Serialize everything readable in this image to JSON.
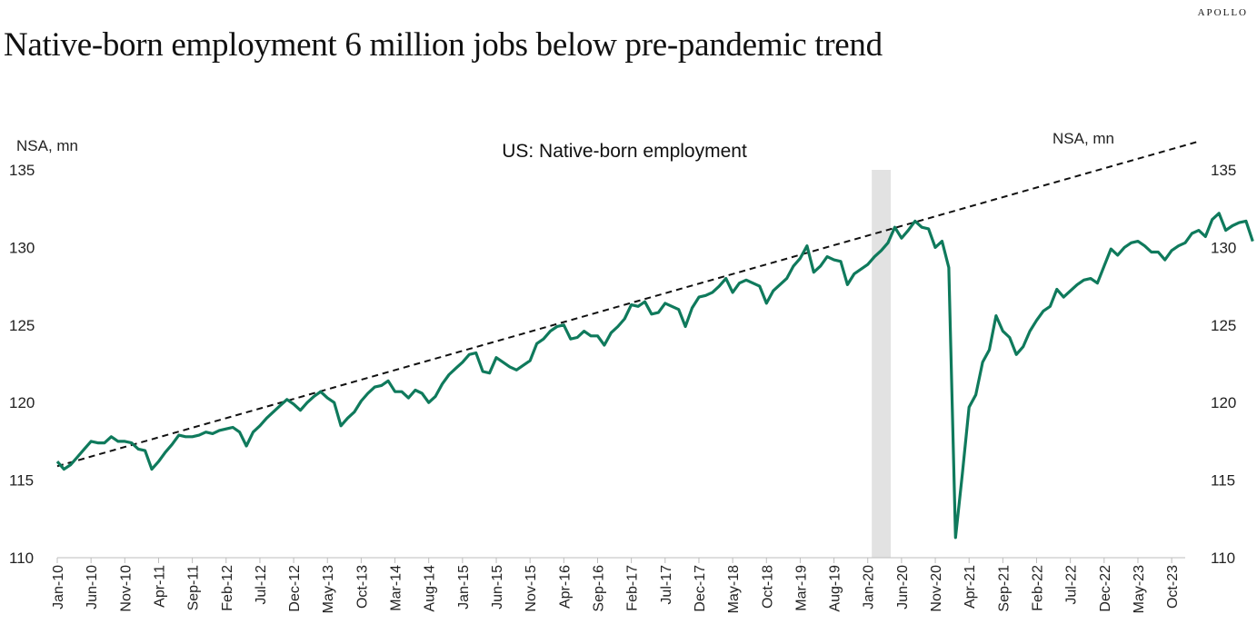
{
  "brand": "APOLLO",
  "title": "Native-born employment 6 million jobs below pre-pandemic trend",
  "chart_data": {
    "type": "line",
    "title": "US: Native-born employment",
    "ylabel_left": "NSA, mn",
    "ylabel_right": "NSA, mn",
    "ylim": [
      110,
      135
    ],
    "yticks": [
      110,
      115,
      120,
      125,
      130,
      135
    ],
    "x_tick_labels": [
      "Jan-10",
      "Jun-10",
      "Nov-10",
      "Apr-11",
      "Sep-11",
      "Feb-12",
      "Jul-12",
      "Dec-12",
      "May-13",
      "Oct-13",
      "Mar-14",
      "Aug-14",
      "Jan-15",
      "Jun-15",
      "Nov-15",
      "Apr-16",
      "Sep-16",
      "Feb-17",
      "Jul-17",
      "Dec-17",
      "May-18",
      "Oct-18",
      "Mar-19",
      "Aug-19",
      "Jan-20",
      "Jun-20",
      "Nov-20",
      "Apr-21",
      "Sep-21",
      "Feb-22",
      "Jul-22",
      "Dec-22",
      "May-23",
      "Oct-23"
    ],
    "x_start": "Jan-10",
    "x_end": "Dec-23",
    "recession_shading": {
      "start": "Feb-20",
      "end": "Apr-20",
      "color": "#e2e2e2"
    },
    "line_color": "#0f7a5c",
    "trend_color": "#111111",
    "grid": false,
    "series": [
      {
        "values": [
          116.2,
          115.7,
          116.0,
          116.5,
          117.0,
          117.5,
          117.4,
          117.4,
          117.8,
          117.5,
          117.5,
          117.4,
          117.0,
          116.9,
          115.7,
          116.2,
          116.8,
          117.3,
          117.9,
          117.8,
          117.8,
          117.9,
          118.1,
          118.0,
          118.2,
          118.3,
          118.4,
          118.1,
          117.2,
          118.1,
          118.5,
          119.0,
          119.4,
          119.8,
          120.2,
          119.9,
          119.5,
          120.0,
          120.4,
          120.7,
          120.3,
          120.0,
          118.5,
          119.0,
          119.4,
          120.1,
          120.6,
          121.0,
          121.1,
          121.4,
          120.7,
          120.7,
          120.3,
          120.8,
          120.6,
          120.0,
          120.4,
          121.2,
          121.8,
          122.2,
          122.6,
          123.1,
          123.2,
          122.0,
          121.9,
          122.9,
          122.6,
          122.3,
          122.1,
          122.4,
          122.7,
          123.8,
          124.1,
          124.6,
          124.9,
          125.0,
          124.1,
          124.2,
          124.6,
          124.3,
          124.3,
          123.7,
          124.5,
          124.9,
          125.4,
          126.3,
          126.2,
          126.5,
          125.7,
          125.8,
          126.4,
          126.2,
          126.0,
          124.9,
          126.1,
          126.8,
          126.9,
          127.1,
          127.5,
          128.0,
          127.1,
          127.7,
          127.9,
          127.7,
          127.5,
          126.4,
          127.2,
          127.6,
          128.0,
          128.8,
          129.3,
          130.1,
          128.4,
          128.8,
          129.4,
          129.2,
          129.1,
          127.6,
          128.3,
          128.6,
          128.9,
          129.4,
          129.8,
          130.3,
          131.3,
          130.6,
          131.1,
          131.7,
          131.3,
          131.2,
          130.0,
          130.4,
          128.7,
          111.3,
          115.4,
          119.7,
          120.5,
          122.6,
          123.4,
          125.6,
          124.6,
          124.2,
          123.1,
          123.6,
          124.6,
          125.3,
          125.9,
          126.2,
          127.3,
          126.8,
          127.2,
          127.6,
          127.9,
          128.0,
          127.7,
          128.8,
          129.9,
          129.5,
          130.0,
          130.3,
          130.4,
          130.1,
          129.7,
          129.7,
          129.2,
          129.8,
          130.1,
          130.3,
          130.9,
          131.1,
          130.7,
          131.8,
          132.2,
          131.1,
          131.4,
          131.6,
          131.7,
          130.4
        ]
      }
    ],
    "trend": {
      "start": {
        "x": "Jan-10",
        "y": 115.9
      },
      "end": {
        "x": "Dec-23",
        "y": 136.7
      },
      "style": "dashed"
    }
  }
}
